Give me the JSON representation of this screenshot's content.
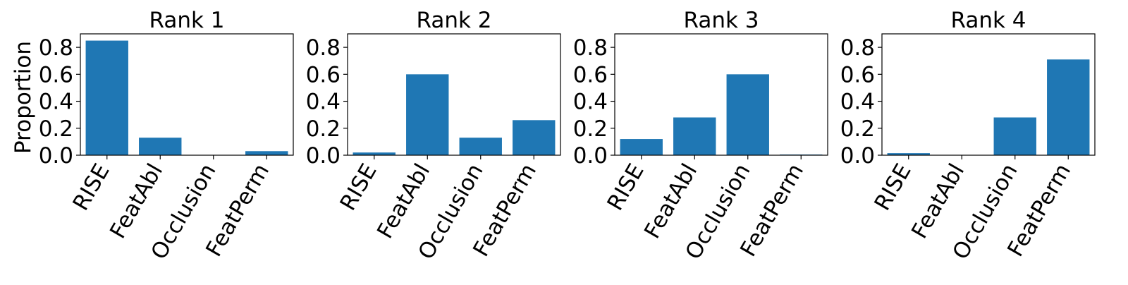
{
  "figure": {
    "ylabel": "Proportion"
  },
  "chart_data": [
    {
      "type": "bar",
      "title": "Rank 1",
      "categories": [
        "RISE",
        "FeatAbl",
        "Occlusion",
        "FeatPerm"
      ],
      "values": [
        0.85,
        0.13,
        0.0,
        0.03
      ],
      "ylabel": "Proportion",
      "ylim": [
        0,
        0.9
      ],
      "yticks": [
        0.0,
        0.2,
        0.4,
        0.6,
        0.8
      ],
      "ytick_labels": [
        "0.0",
        "0.2",
        "0.4",
        "0.6",
        "0.8"
      ],
      "color": "#1f77b4"
    },
    {
      "type": "bar",
      "title": "Rank 2",
      "categories": [
        "RISE",
        "FeatAbl",
        "Occlusion",
        "FeatPerm"
      ],
      "values": [
        0.02,
        0.6,
        0.13,
        0.26
      ],
      "ylim": [
        0,
        0.9
      ],
      "yticks": [
        0.0,
        0.2,
        0.4,
        0.6,
        0.8
      ],
      "ytick_labels": [
        "0.0",
        "0.2",
        "0.4",
        "0.6",
        "0.8"
      ],
      "color": "#1f77b4"
    },
    {
      "type": "bar",
      "title": "Rank 3",
      "categories": [
        "RISE",
        "FeatAbl",
        "Occlusion",
        "FeatPerm"
      ],
      "values": [
        0.12,
        0.28,
        0.6,
        0.005
      ],
      "ylim": [
        0,
        0.9
      ],
      "yticks": [
        0.0,
        0.2,
        0.4,
        0.6,
        0.8
      ],
      "ytick_labels": [
        "0.0",
        "0.2",
        "0.4",
        "0.6",
        "0.8"
      ],
      "color": "#1f77b4"
    },
    {
      "type": "bar",
      "title": "Rank 4",
      "categories": [
        "RISE",
        "FeatAbl",
        "Occlusion",
        "FeatPerm"
      ],
      "values": [
        0.015,
        0.0,
        0.28,
        0.71
      ],
      "ylim": [
        0,
        0.9
      ],
      "yticks": [
        0.0,
        0.2,
        0.4,
        0.6,
        0.8
      ],
      "ytick_labels": [
        "0.0",
        "0.2",
        "0.4",
        "0.6",
        "0.8"
      ],
      "color": "#1f77b4"
    }
  ]
}
